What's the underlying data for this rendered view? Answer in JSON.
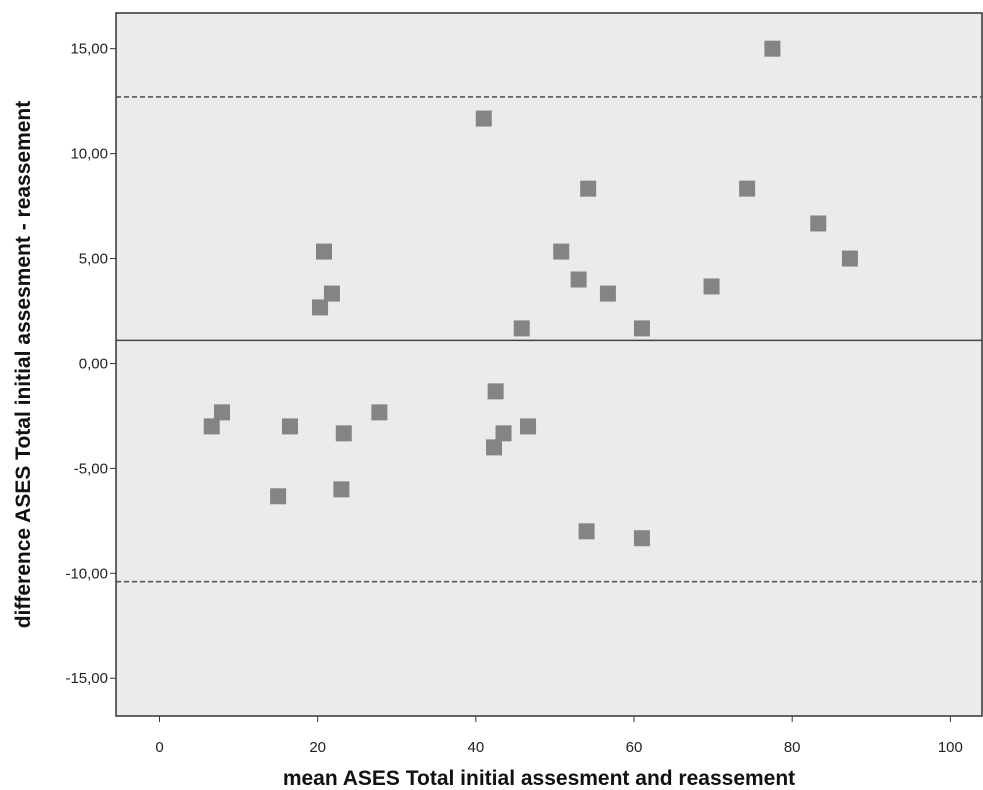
{
  "chart_data": {
    "type": "scatter",
    "title": "",
    "xlabel": "mean ASES Total initial assesment and reassement",
    "ylabel": "difference ASES Total initial assesment - reassement",
    "xlim": [
      -5.5,
      104
    ],
    "ylim": [
      -16.8,
      16.7
    ],
    "xticks": [
      0,
      20,
      40,
      60,
      80,
      100
    ],
    "xtick_labels": [
      "0",
      "20",
      "40",
      "60",
      "80",
      "100"
    ],
    "yticks": [
      15,
      10,
      5,
      0,
      -5,
      -10,
      -15
    ],
    "ytick_labels": [
      "15,00",
      "10,00",
      "5,00",
      "0,00",
      "-5,00",
      "-10,00",
      "-15,00"
    ],
    "grid": false,
    "background_color": "#ebebeb",
    "marker_color": "#848484",
    "marker_shape": "square",
    "reference_lines": [
      {
        "y": 12.7,
        "style": "dashed"
      },
      {
        "y": 1.1,
        "style": "solid"
      },
      {
        "y": -10.4,
        "style": "dashed"
      }
    ],
    "points": [
      {
        "x": 77.5,
        "y": 15.0
      },
      {
        "x": 41.0,
        "y": 11.67
      },
      {
        "x": 54.2,
        "y": 8.33
      },
      {
        "x": 74.3,
        "y": 8.33
      },
      {
        "x": 83.3,
        "y": 6.67
      },
      {
        "x": 20.8,
        "y": 5.33
      },
      {
        "x": 50.8,
        "y": 5.33
      },
      {
        "x": 87.3,
        "y": 5.0
      },
      {
        "x": 53.0,
        "y": 4.0
      },
      {
        "x": 69.8,
        "y": 3.67
      },
      {
        "x": 21.8,
        "y": 3.33
      },
      {
        "x": 56.7,
        "y": 3.33
      },
      {
        "x": 20.3,
        "y": 2.67
      },
      {
        "x": 45.8,
        "y": 1.67
      },
      {
        "x": 61.0,
        "y": 1.67
      },
      {
        "x": 42.5,
        "y": -1.33
      },
      {
        "x": 7.9,
        "y": -2.33
      },
      {
        "x": 27.8,
        "y": -2.33
      },
      {
        "x": 6.6,
        "y": -3.0
      },
      {
        "x": 16.5,
        "y": -3.0
      },
      {
        "x": 46.6,
        "y": -3.0
      },
      {
        "x": 23.3,
        "y": -3.33
      },
      {
        "x": 43.5,
        "y": -3.33
      },
      {
        "x": 42.3,
        "y": -4.0
      },
      {
        "x": 23.0,
        "y": -6.0
      },
      {
        "x": 15.0,
        "y": -6.33
      },
      {
        "x": 54.0,
        "y": -8.0
      },
      {
        "x": 61.0,
        "y": -8.33
      }
    ]
  }
}
